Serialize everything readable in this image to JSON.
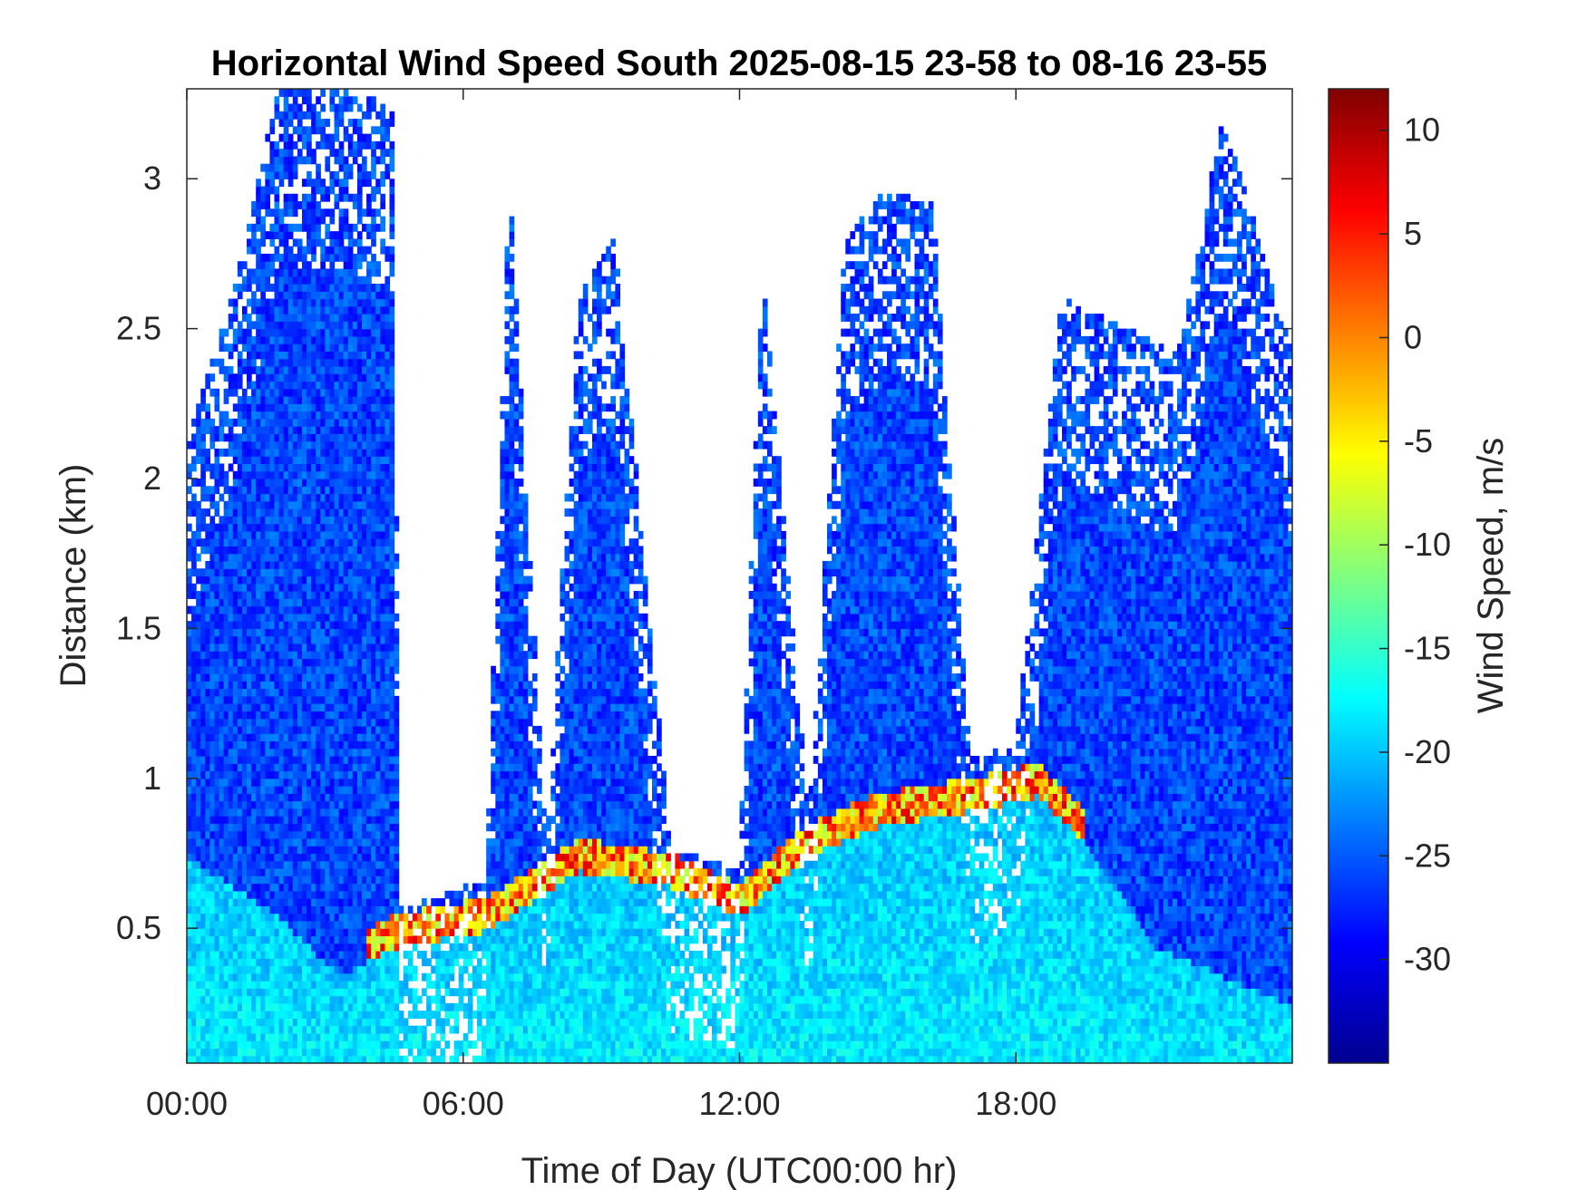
{
  "chart_data": {
    "type": "heatmap",
    "title": "Horizontal Wind Speed South 2025-08-15 23-58 to 08-16 23-55",
    "xlabel": "Time of Day (UTC00:00 hr)",
    "ylabel": "Distance (km)",
    "xlim": [
      0,
      24
    ],
    "ylim": [
      0.05,
      3.3
    ],
    "x_ticks": [
      0,
      6,
      12,
      18
    ],
    "x_tick_labels": [
      "00:00",
      "06:00",
      "12:00",
      "18:00"
    ],
    "y_ticks": [
      0.5,
      1,
      1.5,
      2,
      2.5,
      3
    ],
    "y_tick_labels": [
      "0.5",
      "1",
      "1.5",
      "2",
      "2.5",
      "3"
    ],
    "colorbar": {
      "label": "Wind Speed, m/s",
      "colormap": "jet",
      "range": [
        -35,
        12
      ],
      "ticks": [
        10,
        5,
        0,
        -5,
        -10,
        -15,
        -20,
        -25,
        -30
      ],
      "tick_labels": [
        "10",
        "5",
        "0",
        "-5",
        "-10",
        "-15",
        "-20",
        "-25",
        "-30"
      ]
    },
    "grid": false,
    "data_top_km": [
      {
        "t": 0.0,
        "top": 2.1
      },
      {
        "t": 1.0,
        "top": 2.6
      },
      {
        "t": 2.0,
        "top": 3.3
      },
      {
        "t": 3.2,
        "top": 3.3
      },
      {
        "t": 3.6,
        "top": 3.3
      },
      {
        "t": 4.5,
        "top": 3.2
      },
      {
        "t": 4.6,
        "top": 0.55
      },
      {
        "t": 6.5,
        "top": 0.65
      },
      {
        "t": 7.0,
        "top": 3.0
      },
      {
        "t": 7.8,
        "top": 0.75
      },
      {
        "t": 8.5,
        "top": 2.6
      },
      {
        "t": 9.3,
        "top": 2.8
      },
      {
        "t": 10.5,
        "top": 0.75
      },
      {
        "t": 12.0,
        "top": 0.7
      },
      {
        "t": 12.5,
        "top": 2.7
      },
      {
        "t": 13.5,
        "top": 0.85
      },
      {
        "t": 14.3,
        "top": 2.8
      },
      {
        "t": 15.2,
        "top": 2.95
      },
      {
        "t": 16.2,
        "top": 2.9
      },
      {
        "t": 17.0,
        "top": 1.05
      },
      {
        "t": 18.0,
        "top": 1.1
      },
      {
        "t": 19.0,
        "top": 2.6
      },
      {
        "t": 21.5,
        "top": 2.4
      },
      {
        "t": 22.5,
        "top": 3.2
      },
      {
        "t": 24.0,
        "top": 2.4
      }
    ],
    "boundary_layer_km": [
      {
        "t": 0.0,
        "h": 0.8
      },
      {
        "t": 2.0,
        "h": 0.6
      },
      {
        "t": 3.3,
        "h": 0.4
      },
      {
        "t": 4.6,
        "h": 0.5
      },
      {
        "t": 6.5,
        "h": 0.55
      },
      {
        "t": 8.5,
        "h": 0.75
      },
      {
        "t": 10.5,
        "h": 0.7
      },
      {
        "t": 12.0,
        "h": 0.6
      },
      {
        "t": 13.5,
        "h": 0.8
      },
      {
        "t": 15.0,
        "h": 0.9
      },
      {
        "t": 17.0,
        "h": 0.95
      },
      {
        "t": 18.5,
        "h": 1.0
      },
      {
        "t": 19.5,
        "h": 0.85
      },
      {
        "t": 21.0,
        "h": 0.5
      },
      {
        "t": 22.5,
        "h": 0.4
      },
      {
        "t": 24.0,
        "h": 0.3
      }
    ],
    "near_surface_speed_ms": -18,
    "upper_speed_ms": -26,
    "shear_layer_speed_ms": 8
  }
}
